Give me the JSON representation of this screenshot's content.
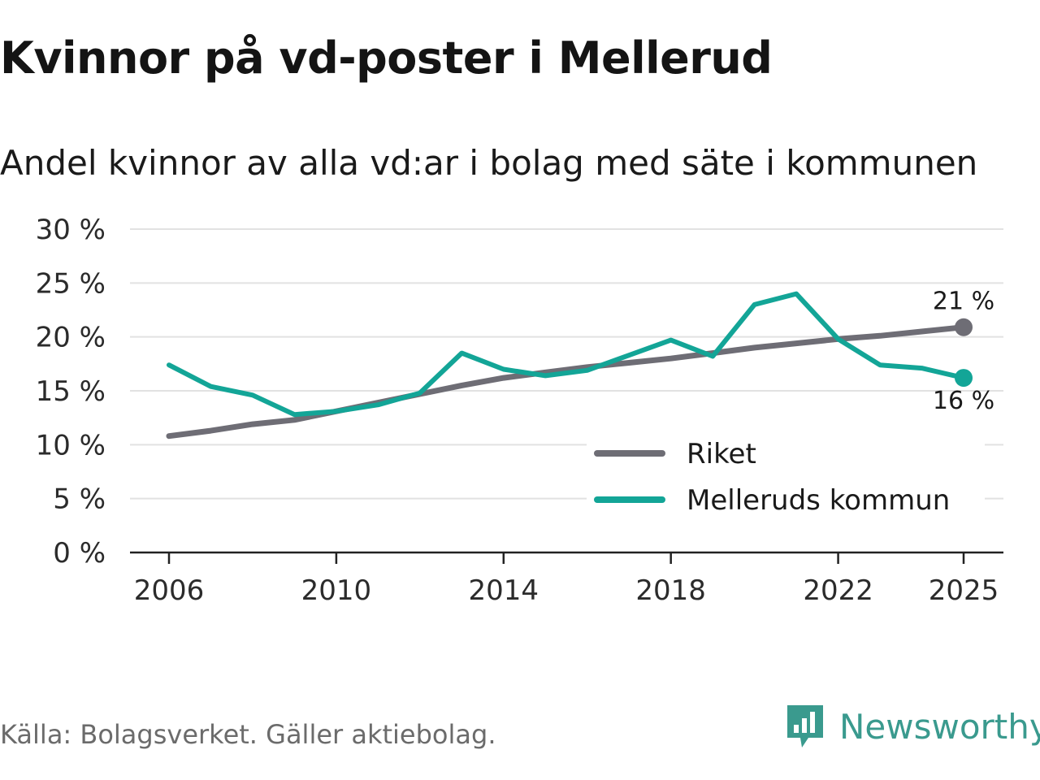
{
  "title": "Kvinnor på vd-poster i Mellerud",
  "subtitle": "Andel kvinnor av alla vd:ar i bolag med säte i kommunen",
  "source": "Källa: Bolagsverket. Gäller aktiebolag.",
  "brand": "Newsworthy",
  "colors": {
    "riket": "#6e6d75",
    "kommun": "#13a597",
    "grid": "#e2e2e2",
    "axis": "#222222",
    "brand": "#3a9a8e"
  },
  "chart_data": {
    "type": "line",
    "title": "Kvinnor på vd-poster i Mellerud",
    "subtitle": "Andel kvinnor av alla vd:ar i bolag med säte i kommunen",
    "x": [
      2006,
      2007,
      2008,
      2009,
      2010,
      2011,
      2012,
      2013,
      2014,
      2015,
      2016,
      2017,
      2018,
      2019,
      2020,
      2021,
      2022,
      2023,
      2024,
      2025
    ],
    "series": [
      {
        "name": "Riket",
        "values": [
          10.8,
          11.3,
          11.9,
          12.3,
          13.1,
          13.9,
          14.7,
          15.5,
          16.2,
          16.7,
          17.2,
          17.6,
          18.0,
          18.5,
          19.0,
          19.4,
          19.8,
          20.1,
          20.5,
          20.9
        ],
        "end_label": "21 %"
      },
      {
        "name": "Melleruds kommun",
        "values": [
          17.4,
          15.4,
          14.6,
          12.8,
          13.1,
          13.7,
          14.8,
          18.5,
          17.0,
          16.4,
          16.9,
          18.3,
          19.7,
          18.2,
          23.0,
          24.0,
          19.8,
          17.4,
          17.1,
          16.2
        ],
        "end_label": "16 %"
      }
    ],
    "ylim": [
      0,
      30
    ],
    "yticks": [
      0,
      5,
      10,
      15,
      20,
      25,
      30
    ],
    "ytick_labels": [
      "0 %",
      "5 %",
      "10 %",
      "15 %",
      "20 %",
      "25 %",
      "30 %"
    ],
    "xticks": [
      2006,
      2010,
      2014,
      2018,
      2022,
      2025
    ],
    "xtick_labels": [
      "2006",
      "2010",
      "2014",
      "2018",
      "2022",
      "2025"
    ],
    "grid": true,
    "legend": [
      "Riket",
      "Melleruds kommun"
    ],
    "legend_position": "bottom-right"
  }
}
